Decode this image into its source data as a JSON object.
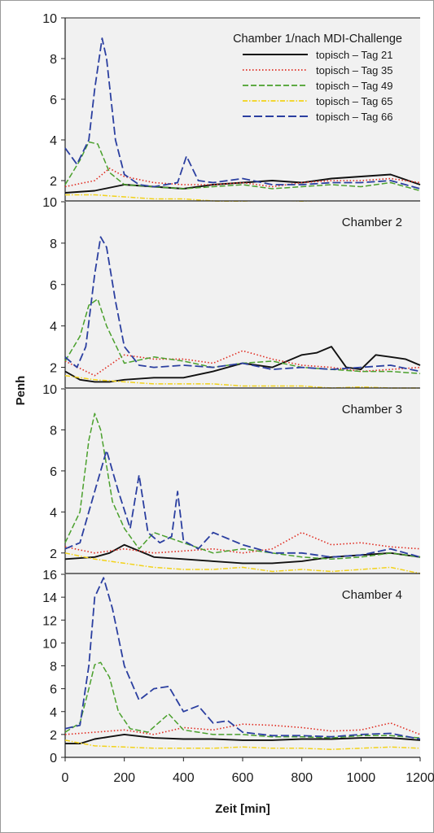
{
  "chart_data": {
    "type": "line",
    "xlabel": "Zeit [min]",
    "ylabel": "Penh",
    "xlim": [
      0,
      1200
    ],
    "xticks": [
      0,
      200,
      400,
      600,
      800,
      1000,
      1200
    ],
    "legend": {
      "title": "Chamber 1/nach MDI-Challenge",
      "position": "top-right"
    },
    "series_styles": [
      {
        "name": "topisch – Tag 21",
        "color": "#111111",
        "dash": "",
        "width": 1.9
      },
      {
        "name": "topisch – Tag 35",
        "color": "#e02b20",
        "dash": "1.5 2.5",
        "width": 1.6
      },
      {
        "name": "topisch – Tag 49",
        "color": "#4aa02c",
        "dash": "7 3",
        "width": 1.5
      },
      {
        "name": "topisch – Tag 65",
        "color": "#f2d21a",
        "dash": "6 2 1.5 2",
        "width": 1.5
      },
      {
        "name": "topisch – Tag 66",
        "color": "#2b3fa0",
        "dash": "10 4",
        "width": 1.8
      }
    ],
    "panels": [
      {
        "title": "",
        "ylim": [
          1,
          10
        ],
        "yticks": [
          2,
          4,
          6,
          8,
          10
        ],
        "series": [
          {
            "name": "topisch – Tag 21",
            "x": [
              0,
              100,
              200,
              300,
              400,
              500,
              600,
              700,
              800,
              900,
              1000,
              1100,
              1200
            ],
            "y": [
              1.4,
              1.5,
              1.8,
              1.7,
              1.6,
              1.8,
              1.9,
              2.0,
              1.9,
              2.1,
              2.2,
              2.3,
              1.8
            ]
          },
          {
            "name": "topisch – Tag 35",
            "x": [
              0,
              100,
              150,
              200,
              300,
              400,
              500,
              600,
              700,
              800,
              900,
              1000,
              1100,
              1200
            ],
            "y": [
              1.7,
              2.0,
              2.6,
              2.2,
              1.9,
              1.8,
              1.8,
              1.9,
              1.7,
              1.9,
              2.0,
              2.0,
              2.1,
              1.9
            ]
          },
          {
            "name": "topisch – Tag 49",
            "x": [
              0,
              50,
              80,
              110,
              150,
              200,
              300,
              400,
              500,
              600,
              700,
              800,
              900,
              1000,
              1100,
              1200
            ],
            "y": [
              1.8,
              3.0,
              3.9,
              3.8,
              2.4,
              1.8,
              1.7,
              1.6,
              1.7,
              1.8,
              1.6,
              1.7,
              1.8,
              1.7,
              1.9,
              1.5
            ]
          },
          {
            "name": "topisch – Tag 65",
            "x": [
              0,
              100,
              200,
              300,
              400,
              500,
              600,
              700,
              800,
              900,
              1000,
              1100,
              1200
            ],
            "y": [
              1.3,
              1.3,
              1.2,
              1.1,
              1.1,
              1.0,
              0.95,
              0.9,
              0.95,
              0.9,
              0.9,
              0.85,
              0.9
            ]
          },
          {
            "name": "topisch – Tag 66",
            "x": [
              0,
              40,
              80,
              100,
              125,
              140,
              170,
              200,
              250,
              300,
              380,
              410,
              450,
              500,
              600,
              700,
              800,
              900,
              1000,
              1100,
              1200
            ],
            "y": [
              3.6,
              2.8,
              4.0,
              6.5,
              9.0,
              8.0,
              4.0,
              2.3,
              1.8,
              1.7,
              1.9,
              3.2,
              2.0,
              1.9,
              2.1,
              1.8,
              1.8,
              1.9,
              1.9,
              2.0,
              1.6
            ]
          }
        ]
      },
      {
        "title": "Chamber 2",
        "ylim": [
          1,
          10
        ],
        "yticks": [
          2,
          4,
          6,
          8,
          10
        ],
        "series": [
          {
            "name": "topisch – Tag 21",
            "x": [
              0,
              50,
              100,
              150,
              200,
              300,
              400,
              500,
              600,
              700,
              800,
              850,
              900,
              950,
              1000,
              1050,
              1100,
              1150,
              1200
            ],
            "y": [
              1.8,
              1.4,
              1.3,
              1.3,
              1.4,
              1.5,
              1.5,
              1.8,
              2.2,
              2.0,
              2.6,
              2.7,
              3.0,
              2.0,
              1.9,
              2.6,
              2.5,
              2.4,
              2.1
            ]
          },
          {
            "name": "topisch – Tag 35",
            "x": [
              0,
              100,
              200,
              300,
              400,
              500,
              600,
              700,
              800,
              900,
              1000,
              1100,
              1200
            ],
            "y": [
              2.3,
              1.6,
              2.6,
              2.4,
              2.4,
              2.2,
              2.8,
              2.4,
              2.1,
              2.0,
              1.8,
              1.9,
              2.0
            ]
          },
          {
            "name": "topisch – Tag 49",
            "x": [
              0,
              50,
              80,
              110,
              140,
              200,
              300,
              400,
              500,
              600,
              700,
              800,
              900,
              1000,
              1100,
              1200
            ],
            "y": [
              2.3,
              3.5,
              5.0,
              5.3,
              4.0,
              2.2,
              2.5,
              2.3,
              2.0,
              2.2,
              2.3,
              2.0,
              1.9,
              1.8,
              1.8,
              1.7
            ]
          },
          {
            "name": "topisch – Tag 65",
            "x": [
              0,
              100,
              200,
              300,
              400,
              500,
              600,
              700,
              800,
              900,
              1000,
              1100,
              1200
            ],
            "y": [
              1.6,
              1.4,
              1.3,
              1.2,
              1.2,
              1.2,
              1.1,
              1.1,
              1.1,
              1.0,
              1.05,
              1.0,
              1.0
            ]
          },
          {
            "name": "topisch – Tag 66",
            "x": [
              0,
              40,
              70,
              100,
              120,
              140,
              170,
              200,
              250,
              300,
              400,
              500,
              600,
              700,
              800,
              900,
              1000,
              1100,
              1200
            ],
            "y": [
              2.5,
              2.0,
              3.0,
              6.5,
              8.3,
              7.8,
              5.2,
              3.0,
              2.1,
              2.0,
              2.1,
              2.0,
              2.2,
              1.9,
              2.0,
              1.9,
              2.0,
              2.1,
              1.8
            ]
          }
        ]
      },
      {
        "title": "Chamber 3",
        "ylim": [
          1,
          10
        ],
        "yticks": [
          2,
          4,
          6,
          8,
          10
        ],
        "series": [
          {
            "name": "topisch – Tag 21",
            "x": [
              0,
              100,
              150,
              200,
              300,
              400,
              500,
              600,
              700,
              800,
              900,
              1000,
              1100,
              1200
            ],
            "y": [
              1.7,
              1.8,
              2.0,
              2.4,
              1.8,
              1.7,
              1.6,
              1.5,
              1.5,
              1.6,
              1.8,
              1.9,
              2.0,
              1.8
            ]
          },
          {
            "name": "topisch – Tag 35",
            "x": [
              0,
              100,
              200,
              300,
              400,
              500,
              600,
              700,
              800,
              900,
              1000,
              1100,
              1200
            ],
            "y": [
              2.3,
              2.0,
              2.2,
              2.0,
              2.1,
              2.2,
              2.0,
              2.2,
              3.0,
              2.4,
              2.5,
              2.3,
              2.2
            ]
          },
          {
            "name": "topisch – Tag 49",
            "x": [
              0,
              50,
              80,
              100,
              120,
              160,
              200,
              250,
              300,
              400,
              500,
              600,
              700,
              800,
              900,
              1000,
              1100,
              1200
            ],
            "y": [
              2.5,
              4.0,
              7.5,
              8.8,
              8.0,
              4.5,
              3.2,
              2.2,
              3.0,
              2.5,
              2.0,
              2.2,
              2.0,
              1.8,
              1.7,
              1.8,
              2.0,
              1.8
            ]
          },
          {
            "name": "topisch – Tag 65",
            "x": [
              0,
              100,
              200,
              300,
              400,
              500,
              600,
              700,
              800,
              900,
              1000,
              1100,
              1200
            ],
            "y": [
              2.0,
              1.7,
              1.5,
              1.3,
              1.2,
              1.2,
              1.3,
              1.1,
              1.2,
              1.1,
              1.2,
              1.3,
              1.0
            ]
          },
          {
            "name": "topisch – Tag 66",
            "x": [
              0,
              50,
              100,
              140,
              180,
              220,
              250,
              280,
              320,
              360,
              380,
              400,
              450,
              500,
              600,
              700,
              800,
              900,
              1000,
              1100,
              1200
            ],
            "y": [
              2.2,
              2.5,
              5.0,
              7.0,
              5.0,
              3.2,
              5.8,
              3.0,
              2.5,
              2.8,
              5.0,
              2.6,
              2.2,
              3.0,
              2.4,
              2.0,
              2.0,
              1.8,
              1.9,
              2.2,
              1.8
            ]
          }
        ]
      },
      {
        "title": "Chamber 4",
        "ylim": [
          0,
          16
        ],
        "yticks": [
          0,
          2,
          4,
          6,
          8,
          10,
          12,
          14,
          16
        ],
        "series": [
          {
            "name": "topisch – Tag 21",
            "x": [
              0,
              50,
              100,
              150,
              200,
              300,
              400,
              500,
              600,
              700,
              800,
              900,
              1000,
              1100,
              1200
            ],
            "y": [
              1.2,
              1.2,
              1.6,
              1.8,
              2.0,
              1.7,
              1.6,
              1.6,
              1.5,
              1.5,
              1.6,
              1.6,
              1.7,
              1.7,
              1.5
            ]
          },
          {
            "name": "topisch – Tag 35",
            "x": [
              0,
              100,
              200,
              300,
              400,
              500,
              600,
              700,
              800,
              900,
              1000,
              1100,
              1200
            ],
            "y": [
              2.0,
              2.2,
              2.4,
              2.0,
              2.6,
              2.4,
              2.9,
              2.8,
              2.6,
              2.3,
              2.4,
              3.0,
              2.0
            ]
          },
          {
            "name": "topisch – Tag 49",
            "x": [
              0,
              50,
              80,
              100,
              120,
              150,
              180,
              220,
              280,
              350,
              400,
              500,
              600,
              700,
              800,
              900,
              1000,
              1100,
              1200
            ],
            "y": [
              2.2,
              3.0,
              6.0,
              8.1,
              8.3,
              7.0,
              4.0,
              2.5,
              2.2,
              3.8,
              2.4,
              2.0,
              2.0,
              1.8,
              1.8,
              1.7,
              1.9,
              1.9,
              1.7
            ]
          },
          {
            "name": "topisch – Tag 65",
            "x": [
              0,
              100,
              200,
              300,
              400,
              500,
              600,
              700,
              800,
              900,
              1000,
              1100,
              1200
            ],
            "y": [
              1.5,
              1.0,
              0.9,
              0.8,
              0.8,
              0.8,
              0.9,
              0.8,
              0.8,
              0.7,
              0.8,
              0.9,
              0.8
            ]
          },
          {
            "name": "topisch – Tag 66",
            "x": [
              0,
              50,
              80,
              100,
              130,
              160,
              200,
              250,
              300,
              350,
              400,
              450,
              500,
              550,
              600,
              700,
              800,
              900,
              1000,
              1100,
              1200
            ],
            "y": [
              2.5,
              2.8,
              8.0,
              14.0,
              15.7,
              13.0,
              8.0,
              5.0,
              6.0,
              6.2,
              4.0,
              4.5,
              3.0,
              3.2,
              2.2,
              1.9,
              1.9,
              1.8,
              2.0,
              2.1,
              1.6
            ]
          }
        ]
      }
    ]
  }
}
